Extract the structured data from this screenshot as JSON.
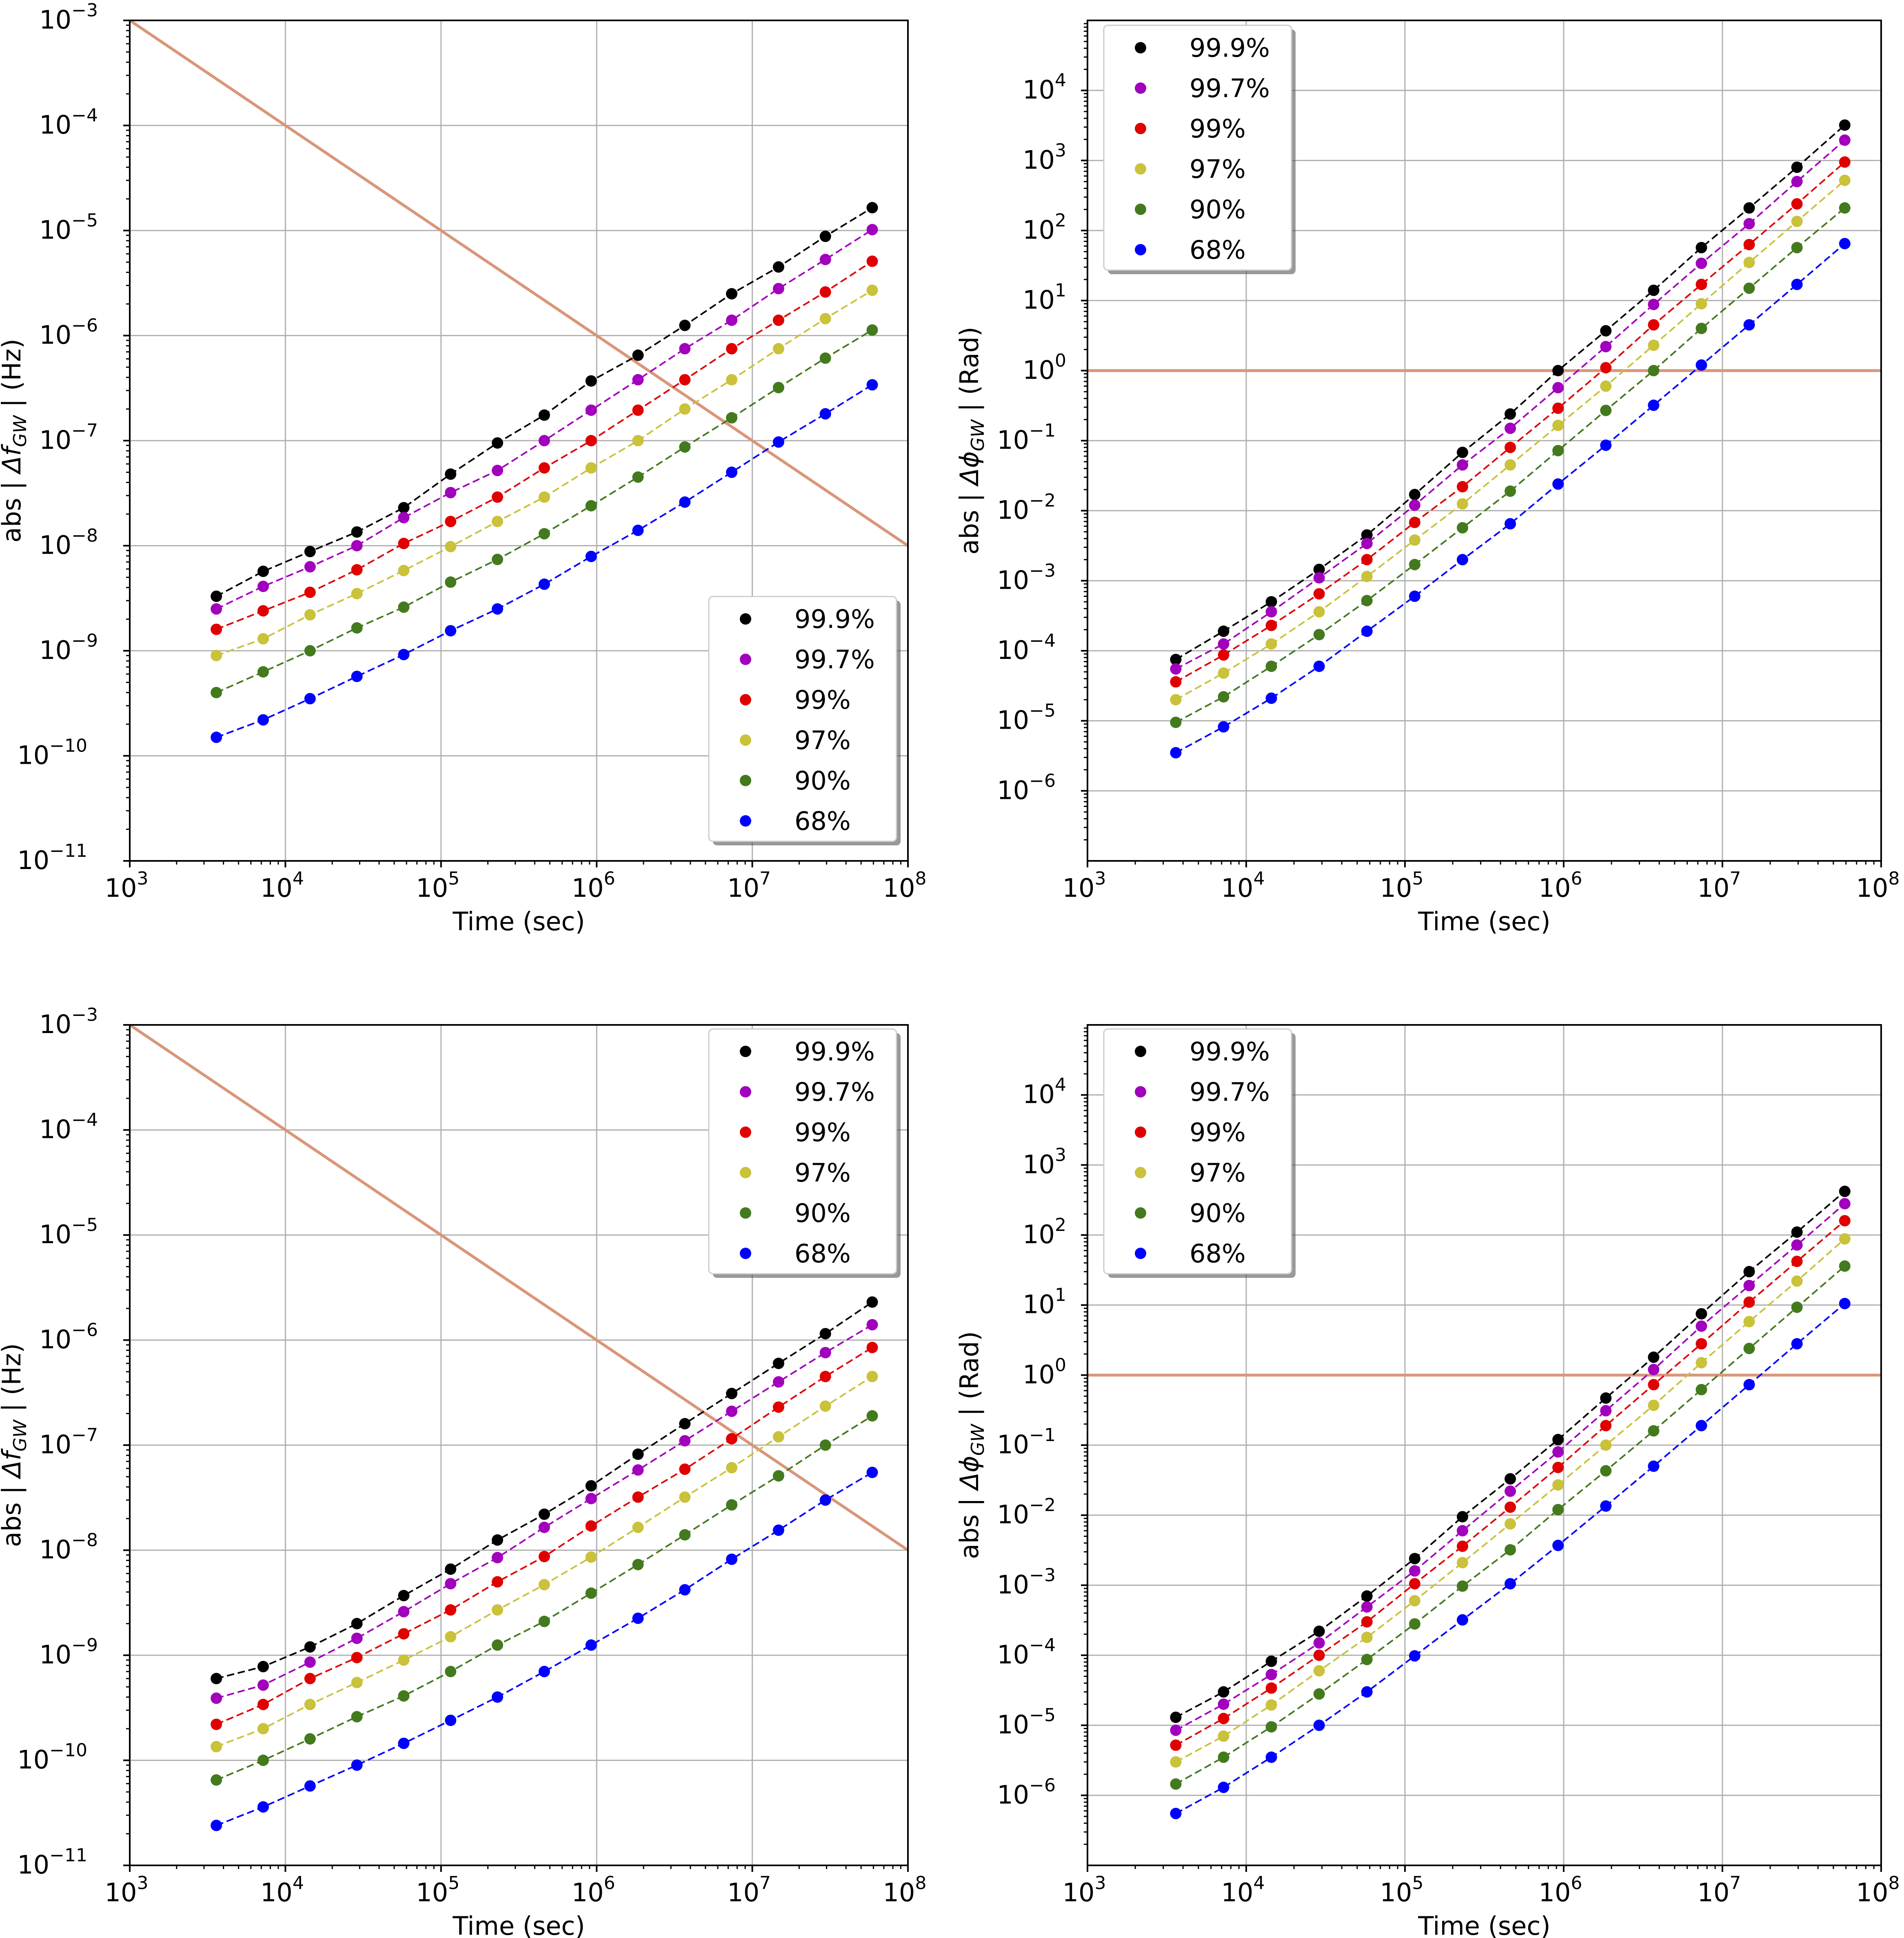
{
  "figure": {
    "colors": {
      "99.9%": "#000000",
      "99.7%": "#a100bd",
      "99%": "#e00000",
      "97%": "#c9c23a",
      "90%": "#447a1e",
      "68%": "#0000ff",
      "reference": "#d9967a",
      "grid": "#b0b0b0"
    }
  },
  "chart_data": [
    {
      "type": "scatter",
      "id": "top-left",
      "xlabel": "Time (sec)",
      "ylabel_prefix": "abs | ",
      "ylabel_symbol": "Δf",
      "ylabel_sub": "GW",
      "ylabel_suffix": " |  (Hz)",
      "xscale": "log",
      "yscale": "log",
      "xlim": [
        1000,
        100000000
      ],
      "ylim": [
        1e-11,
        0.001
      ],
      "x_ticks": [
        3,
        4,
        5,
        6,
        7,
        8
      ],
      "y_ticks": [
        -11,
        -10,
        -9,
        -8,
        -7,
        -6,
        -5,
        -4,
        -3
      ],
      "grid": true,
      "legend_position": "lower-right",
      "x": [
        3600,
        7200,
        14400,
        28800,
        57600,
        115200,
        230400,
        460800,
        921600,
        1843200,
        3686400,
        7372800,
        14745600,
        29491200,
        58982400
      ],
      "series": [
        {
          "name": "99.9%",
          "values": [
            3.3e-09,
            5.7e-09,
            8.8e-09,
            1.35e-08,
            2.3e-08,
            4.8e-08,
            9.5e-08,
            1.75e-07,
            3.7e-07,
            6.5e-07,
            1.25e-06,
            2.5e-06,
            4.5e-06,
            8.8e-06,
            1.65e-05
          ]
        },
        {
          "name": "99.7%",
          "values": [
            2.5e-09,
            4.1e-09,
            6.3e-09,
            1e-08,
            1.85e-08,
            3.2e-08,
            5.2e-08,
            1e-07,
            1.95e-07,
            3.8e-07,
            7.5e-07,
            1.4e-06,
            2.8e-06,
            5.3e-06,
            1.02e-05
          ]
        },
        {
          "name": "99%",
          "values": [
            1.6e-09,
            2.4e-09,
            3.6e-09,
            5.9e-09,
            1.05e-08,
            1.7e-08,
            2.9e-08,
            5.5e-08,
            1e-07,
            1.95e-07,
            3.8e-07,
            7.5e-07,
            1.4e-06,
            2.6e-06,
            5.1e-06
          ]
        },
        {
          "name": "97%",
          "values": [
            9e-10,
            1.3e-09,
            2.2e-09,
            3.5e-09,
            5.8e-09,
            9.8e-09,
            1.7e-08,
            2.9e-08,
            5.5e-08,
            1e-07,
            2e-07,
            3.8e-07,
            7.5e-07,
            1.45e-06,
            2.7e-06
          ]
        },
        {
          "name": "90%",
          "values": [
            4e-10,
            6.3e-10,
            1e-09,
            1.65e-09,
            2.6e-09,
            4.5e-09,
            7.4e-09,
            1.3e-08,
            2.4e-08,
            4.5e-08,
            8.7e-08,
            1.65e-07,
            3.2e-07,
            6.1e-07,
            1.13e-06
          ]
        },
        {
          "name": "68%",
          "values": [
            1.5e-10,
            2.2e-10,
            3.5e-10,
            5.7e-10,
            9.2e-10,
            1.55e-09,
            2.5e-09,
            4.3e-09,
            7.9e-09,
            1.4e-08,
            2.6e-08,
            5e-08,
            9.7e-08,
            1.8e-07,
            3.4e-07
          ]
        }
      ],
      "reference_line": {
        "x": [
          1000,
          100000000
        ],
        "y": [
          0.001,
          1e-08
        ]
      },
      "legend": [
        "99.9%",
        "99.7%",
        "99%",
        "97%",
        "90%",
        "68%"
      ]
    },
    {
      "type": "scatter",
      "id": "top-right",
      "xlabel": "Time (sec)",
      "ylabel_prefix": "abs | ",
      "ylabel_symbol": "Δϕ",
      "ylabel_sub": "GW",
      "ylabel_suffix": " |  (Rad)",
      "xscale": "log",
      "yscale": "log",
      "xlim": [
        1000,
        100000000
      ],
      "ylim": [
        1e-07,
        100000
      ],
      "x_ticks": [
        3,
        4,
        5,
        6,
        7,
        8
      ],
      "y_ticks": [
        -6,
        -5,
        -4,
        -3,
        -2,
        -1,
        0,
        1,
        2,
        3,
        4
      ],
      "grid": true,
      "legend_position": "upper-left",
      "x": [
        3600,
        7200,
        14400,
        28800,
        57600,
        115200,
        230400,
        460800,
        921600,
        1843200,
        3686400,
        7372800,
        14745600,
        29491200,
        58982400
      ],
      "series": [
        {
          "name": "99.9%",
          "values": [
            7.5e-05,
            0.00019,
            0.0005,
            0.00145,
            0.0045,
            0.017,
            0.068,
            0.24,
            1.0,
            3.7,
            14,
            57,
            210,
            800,
            3200
          ]
        },
        {
          "name": "99.7%",
          "values": [
            5.5e-05,
            0.000125,
            0.00036,
            0.0011,
            0.0034,
            0.012,
            0.045,
            0.15,
            0.57,
            2.2,
            8.8,
            34,
            125,
            500,
            1950
          ]
        },
        {
          "name": "99%",
          "values": [
            3.6e-05,
            8.7e-05,
            0.00023,
            0.00065,
            0.002,
            0.0068,
            0.022,
            0.08,
            0.29,
            1.1,
            4.5,
            17,
            63,
            240,
            950
          ]
        },
        {
          "name": "97%",
          "values": [
            2e-05,
            4.8e-05,
            0.000125,
            0.00036,
            0.00115,
            0.0038,
            0.0125,
            0.045,
            0.165,
            0.6,
            2.3,
            9,
            35,
            135,
            520
          ]
        },
        {
          "name": "90%",
          "values": [
            9.5e-06,
            2.2e-05,
            6e-05,
            0.00017,
            0.00052,
            0.0017,
            0.0057,
            0.019,
            0.072,
            0.27,
            1.0,
            4.0,
            15,
            57,
            210
          ]
        },
        {
          "name": "68%",
          "values": [
            3.5e-06,
            8.2e-06,
            2.1e-05,
            6e-05,
            0.00019,
            0.0006,
            0.002,
            0.0065,
            0.024,
            0.086,
            0.32,
            1.2,
            4.5,
            17,
            65
          ]
        }
      ],
      "reference_line": {
        "x": [
          1000,
          100000000
        ],
        "y": [
          1,
          1
        ]
      },
      "legend": [
        "99.9%",
        "99.7%",
        "99%",
        "97%",
        "90%",
        "68%"
      ]
    },
    {
      "type": "scatter",
      "id": "bottom-left",
      "xlabel": "Time (sec)",
      "ylabel_prefix": "abs | ",
      "ylabel_symbol": "Δf",
      "ylabel_sub": "GW",
      "ylabel_suffix": " |  (Hz)",
      "xscale": "log",
      "yscale": "log",
      "xlim": [
        1000,
        100000000
      ],
      "ylim": [
        1e-11,
        0.001
      ],
      "x_ticks": [
        3,
        4,
        5,
        6,
        7,
        8
      ],
      "y_ticks": [
        -11,
        -10,
        -9,
        -8,
        -7,
        -6,
        -5,
        -4,
        -3
      ],
      "grid": true,
      "legend_position": "upper-right",
      "x": [
        3600,
        7200,
        14400,
        28800,
        57600,
        115200,
        230400,
        460800,
        921600,
        1843200,
        3686400,
        7372800,
        14745600,
        29491200,
        58982400
      ],
      "series": [
        {
          "name": "99.9%",
          "values": [
            6e-10,
            7.8e-10,
            1.2e-09,
            2e-09,
            3.7e-09,
            6.6e-09,
            1.25e-08,
            2.2e-08,
            4.1e-08,
            8.2e-08,
            1.6e-07,
            3.1e-07,
            6e-07,
            1.15e-06,
            2.3e-06
          ]
        },
        {
          "name": "99.7%",
          "values": [
            3.9e-10,
            5.2e-10,
            8.6e-10,
            1.45e-09,
            2.6e-09,
            4.8e-09,
            8.5e-09,
            1.65e-08,
            3.1e-08,
            5.8e-08,
            1.1e-07,
            2.1e-07,
            4e-07,
            7.6e-07,
            1.4e-06
          ]
        },
        {
          "name": "99%",
          "values": [
            2.2e-10,
            3.4e-10,
            6e-10,
            9.5e-10,
            1.6e-09,
            2.7e-09,
            5e-09,
            8.7e-09,
            1.7e-08,
            3.2e-08,
            5.9e-08,
            1.15e-07,
            2.3e-07,
            4.5e-07,
            8.5e-07
          ]
        },
        {
          "name": "97%",
          "values": [
            1.35e-10,
            2e-10,
            3.4e-10,
            5.5e-10,
            9e-10,
            1.5e-09,
            2.7e-09,
            4.7e-09,
            8.6e-09,
            1.65e-08,
            3.2e-08,
            6.1e-08,
            1.2e-07,
            2.35e-07,
            4.5e-07
          ]
        },
        {
          "name": "90%",
          "values": [
            6.5e-11,
            1e-10,
            1.6e-10,
            2.6e-10,
            4.1e-10,
            7e-10,
            1.25e-09,
            2.1e-09,
            3.9e-09,
            7.3e-09,
            1.4e-08,
            2.7e-08,
            5.1e-08,
            1e-07,
            1.9e-07
          ]
        },
        {
          "name": "68%",
          "values": [
            2.4e-11,
            3.6e-11,
            5.7e-11,
            9e-11,
            1.45e-10,
            2.4e-10,
            4e-10,
            7e-10,
            1.25e-09,
            2.25e-09,
            4.2e-09,
            8.2e-09,
            1.55e-08,
            3e-08,
            5.5e-08
          ]
        }
      ],
      "reference_line": {
        "x": [
          1000,
          100000000
        ],
        "y": [
          0.001,
          1e-08
        ]
      },
      "legend": [
        "99.9%",
        "99.7%",
        "99%",
        "97%",
        "90%",
        "68%"
      ]
    },
    {
      "type": "scatter",
      "id": "bottom-right",
      "xlabel": "Time (sec)",
      "ylabel_prefix": "abs | ",
      "ylabel_symbol": "Δϕ",
      "ylabel_sub": "GW",
      "ylabel_suffix": " |  (Rad)",
      "xscale": "log",
      "yscale": "log",
      "xlim": [
        1000,
        100000000
      ],
      "ylim": [
        1e-07,
        100000
      ],
      "x_ticks": [
        3,
        4,
        5,
        6,
        7,
        8
      ],
      "y_ticks": [
        -6,
        -5,
        -4,
        -3,
        -2,
        -1,
        0,
        1,
        2,
        3,
        4
      ],
      "grid": true,
      "legend_position": "upper-left",
      "x": [
        3600,
        7200,
        14400,
        28800,
        57600,
        115200,
        230400,
        460800,
        921600,
        1843200,
        3686400,
        7372800,
        14745600,
        29491200,
        58982400
      ],
      "series": [
        {
          "name": "99.9%",
          "values": [
            1.3e-05,
            3e-05,
            8.2e-05,
            0.00022,
            0.0007,
            0.0024,
            0.0095,
            0.033,
            0.12,
            0.47,
            1.8,
            7.5,
            30,
            110,
            420
          ]
        },
        {
          "name": "99.7%",
          "values": [
            8.5e-06,
            2e-05,
            5.3e-05,
            0.00015,
            0.00049,
            0.0016,
            0.006,
            0.022,
            0.08,
            0.31,
            1.2,
            5.0,
            19,
            72,
            280
          ]
        },
        {
          "name": "99%",
          "values": [
            5.2e-06,
            1.25e-05,
            3.4e-05,
            0.0001,
            0.0003,
            0.00105,
            0.0036,
            0.013,
            0.048,
            0.19,
            0.73,
            2.8,
            11,
            42,
            160
          ]
        },
        {
          "name": "97%",
          "values": [
            3e-06,
            7e-06,
            1.95e-05,
            6e-05,
            0.00018,
            0.0006,
            0.0021,
            0.0075,
            0.027,
            0.1,
            0.37,
            1.5,
            5.8,
            22,
            88
          ]
        },
        {
          "name": "90%",
          "values": [
            1.45e-06,
            3.5e-06,
            9.5e-06,
            2.8e-05,
            8.7e-05,
            0.00028,
            0.00097,
            0.0032,
            0.012,
            0.043,
            0.16,
            0.62,
            2.4,
            9.3,
            36
          ]
        },
        {
          "name": "68%",
          "values": [
            5.5e-07,
            1.3e-06,
            3.5e-06,
            1e-05,
            3e-05,
            9.8e-05,
            0.00032,
            0.00105,
            0.0037,
            0.0135,
            0.05,
            0.19,
            0.73,
            2.8,
            10.5
          ]
        }
      ],
      "reference_line": {
        "x": [
          1000,
          100000000
        ],
        "y": [
          1,
          1
        ]
      },
      "legend": [
        "99.9%",
        "99.7%",
        "99%",
        "97%",
        "90%",
        "68%"
      ]
    }
  ]
}
